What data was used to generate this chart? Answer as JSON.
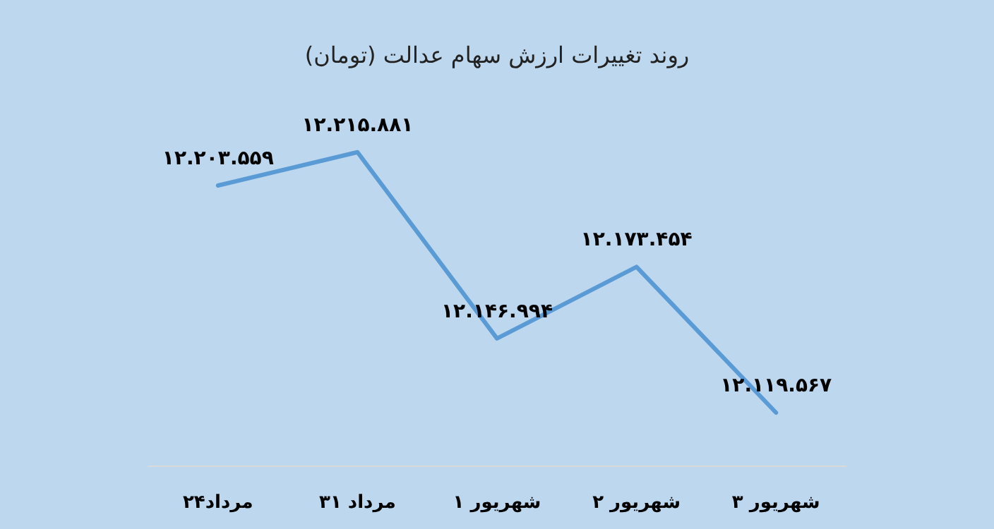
{
  "chart_data": {
    "type": "line",
    "title": "روند تغییرات ارزش سهام عدالت (تومان)",
    "categories": [
      "۲۴مرداد",
      "۳۱ مرداد",
      "۱ شهریور",
      "۲ شهریور",
      "۳ شهریور"
    ],
    "series": [
      {
        "color": "#5b9bd5",
        "values": [
          12203559,
          12215881,
          12146994,
          12173454,
          12119567
        ],
        "value_labels": [
          "۱۲.۲۰۳.۵۵۹",
          "۱۲.۲۱۵.۸۸۱",
          "۱۲.۱۴۶.۹۹۴",
          "۱۲.۱۷۳.۴۵۴",
          "۱۲.۱۱۹.۵۶۷"
        ]
      }
    ],
    "marker": "none",
    "line_style": "solid"
  }
}
